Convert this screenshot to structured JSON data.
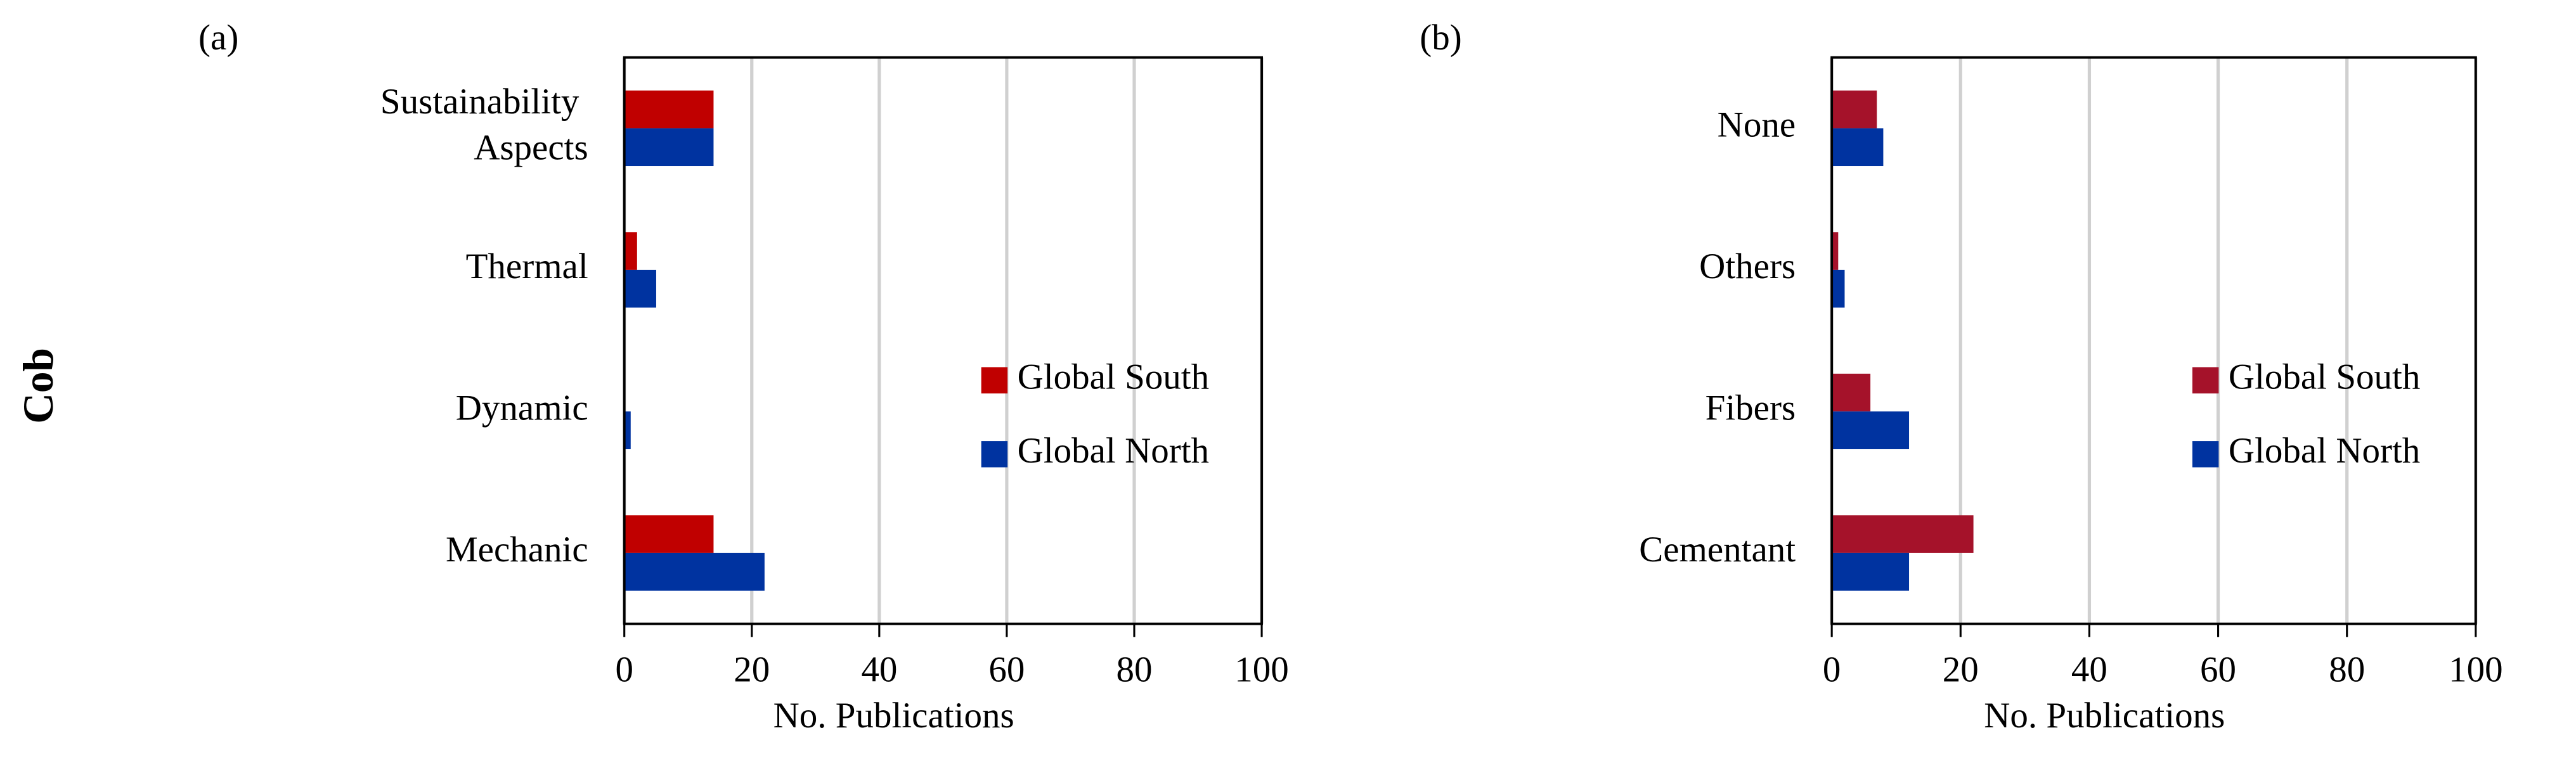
{
  "row_label": "Cob",
  "chart_data": [
    {
      "type": "barh",
      "panel_label": "(a)",
      "xlabel": "No. Publications",
      "categories": [
        "Mechanic",
        "Dynamic",
        "Thermal",
        "Sustainability Aspects"
      ],
      "series": [
        {
          "name": "Global South",
          "color": "#c00000",
          "values": [
            14,
            0,
            2,
            14
          ]
        },
        {
          "name": "Global North",
          "color": "#0033a0",
          "values": [
            22,
            1,
            5,
            14
          ]
        }
      ],
      "xlim": [
        0,
        100
      ],
      "xticks": [
        0,
        20,
        40,
        60,
        80,
        100
      ],
      "grid": true,
      "legend": "right"
    },
    {
      "type": "barh",
      "panel_label": "(b)",
      "xlabel": "No. Publications",
      "categories": [
        "Cementant",
        "Fibers",
        "Others",
        "None"
      ],
      "series": [
        {
          "name": "Global South",
          "color": "#a5122a",
          "values": [
            22,
            6,
            1,
            7
          ]
        },
        {
          "name": "Global North",
          "color": "#0033a0",
          "values": [
            12,
            12,
            2,
            8
          ]
        }
      ],
      "xlim": [
        0,
        100
      ],
      "xticks": [
        0,
        20,
        40,
        60,
        80,
        100
      ],
      "grid": true,
      "legend": "right"
    }
  ]
}
